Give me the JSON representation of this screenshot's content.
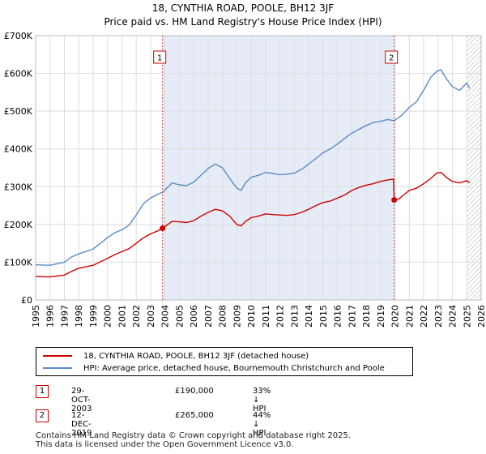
{
  "title_line1": "18, CYNTHIA ROAD, POOLE, BH12 3JF",
  "title_line2": "Price paid vs. HM Land Registry's House Price Index (HPI)",
  "colors": {
    "property": "#cc0000",
    "hpi": "#5b8bc5",
    "shade": "#e6ecf7",
    "grid": "#dddddd"
  },
  "chart_data": {
    "type": "line",
    "title": "18, CYNTHIA ROAD, POOLE, BH12 3JF — Price paid vs. HM Land Registry's House Price Index (HPI)",
    "xlabel": "",
    "ylabel": "",
    "xlim": [
      1995,
      2026
    ],
    "ylim": [
      0,
      700000
    ],
    "x_ticks": [
      1995,
      1996,
      1997,
      1998,
      1999,
      2000,
      2001,
      2002,
      2003,
      2004,
      2005,
      2006,
      2007,
      2008,
      2009,
      2010,
      2011,
      2012,
      2013,
      2014,
      2015,
      2016,
      2017,
      2018,
      2019,
      2020,
      2021,
      2022,
      2023,
      2024,
      2025,
      2026
    ],
    "y_ticks": [
      {
        "value": 0,
        "label": "£0"
      },
      {
        "value": 100000,
        "label": "£100K"
      },
      {
        "value": 200000,
        "label": "£200K"
      },
      {
        "value": 300000,
        "label": "£300K"
      },
      {
        "value": 400000,
        "label": "£400K"
      },
      {
        "value": 500000,
        "label": "£500K"
      },
      {
        "value": 600000,
        "label": "£600K"
      },
      {
        "value": 700000,
        "label": "£700K"
      }
    ],
    "shaded_regions": [
      {
        "from": 2003.83,
        "to": 2019.95,
        "style": "highlight"
      },
      {
        "from": 2025.0,
        "to": 2026.0,
        "style": "hatched"
      }
    ],
    "series": [
      {
        "name": "18, CYNTHIA ROAD, POOLE, BH12 3JF (detached house)",
        "color": "#cc0000",
        "x": [
          1995.0,
          1996.0,
          1997.0,
          1997.5,
          1998.0,
          1999.0,
          2000.0,
          2000.5,
          2001.0,
          2001.5,
          2002.0,
          2002.5,
          2003.0,
          2003.5,
          2003.83,
          2004.5,
          2005.0,
          2005.5,
          2006.0,
          2006.5,
          2007.0,
          2007.5,
          2008.0,
          2008.5,
          2009.0,
          2009.3,
          2009.6,
          2010.0,
          2010.5,
          2011.0,
          2011.5,
          2012.0,
          2012.5,
          2013.0,
          2013.5,
          2014.0,
          2014.5,
          2015.0,
          2015.5,
          2016.0,
          2016.5,
          2017.0,
          2017.5,
          2018.0,
          2018.5,
          2019.0,
          2019.5,
          2019.9,
          2019.95,
          2020.3,
          2020.6,
          2021.0,
          2021.5,
          2022.0,
          2022.5,
          2022.9,
          2023.2,
          2023.6,
          2024.0,
          2024.5,
          2025.0,
          2025.2
        ],
        "y": [
          62000,
          61000,
          66000,
          76000,
          84000,
          92000,
          110000,
          120000,
          128000,
          136000,
          150000,
          165000,
          175000,
          183000,
          190000,
          208000,
          207000,
          205000,
          210000,
          222000,
          232000,
          240000,
          236000,
          222000,
          200000,
          196000,
          208000,
          218000,
          222000,
          228000,
          226000,
          225000,
          224000,
          226000,
          232000,
          240000,
          250000,
          258000,
          262000,
          270000,
          278000,
          290000,
          298000,
          304000,
          308000,
          314000,
          318000,
          320000,
          265000,
          268000,
          278000,
          290000,
          296000,
          308000,
          322000,
          336000,
          338000,
          324000,
          314000,
          310000,
          316000,
          310000
        ]
      },
      {
        "name": "HPI: Average price, detached house, Bournemouth Christchurch and Poole",
        "color": "#5b8bc5",
        "x": [
          1995.0,
          1996.0,
          1997.0,
          1997.5,
          1998.0,
          1999.0,
          2000.0,
          2000.5,
          2001.0,
          2001.5,
          2002.0,
          2002.5,
          2003.0,
          2003.5,
          2003.83,
          2004.5,
          2005.0,
          2005.5,
          2006.0,
          2006.5,
          2007.0,
          2007.5,
          2008.0,
          2008.5,
          2009.0,
          2009.3,
          2009.6,
          2010.0,
          2010.5,
          2011.0,
          2011.5,
          2012.0,
          2012.5,
          2013.0,
          2013.5,
          2014.0,
          2014.5,
          2015.0,
          2015.5,
          2016.0,
          2016.5,
          2017.0,
          2017.5,
          2018.0,
          2018.5,
          2019.0,
          2019.5,
          2019.95,
          2020.5,
          2021.0,
          2021.5,
          2022.0,
          2022.5,
          2022.9,
          2023.2,
          2023.6,
          2024.0,
          2024.5,
          2025.0,
          2025.2
        ],
        "y": [
          93000,
          92000,
          100000,
          114000,
          122000,
          135000,
          165000,
          178000,
          186000,
          198000,
          225000,
          255000,
          270000,
          280000,
          285000,
          310000,
          305000,
          303000,
          312000,
          330000,
          348000,
          360000,
          350000,
          322000,
          296000,
          290000,
          310000,
          325000,
          330000,
          338000,
          335000,
          332000,
          333000,
          336000,
          346000,
          360000,
          375000,
          390000,
          400000,
          413000,
          428000,
          442000,
          452000,
          462000,
          470000,
          473000,
          478000,
          475000,
          490000,
          510000,
          525000,
          555000,
          590000,
          605000,
          610000,
          585000,
          565000,
          555000,
          575000,
          560000
        ]
      }
    ],
    "annotations": [
      {
        "label": "1",
        "x": 2003.83
      },
      {
        "label": "2",
        "x": 2019.95
      }
    ],
    "sale_points": [
      {
        "x": 2003.83,
        "y": 190000
      },
      {
        "x": 2019.95,
        "y": 265000
      }
    ],
    "legend_position": "below"
  },
  "legend": {
    "property": "18, CYNTHIA ROAD, POOLE, BH12 3JF (detached house)",
    "hpi": "HPI: Average price, detached house, Bournemouth Christchurch and Poole"
  },
  "transactions": [
    {
      "num": "1",
      "date": "29-OCT-2003",
      "price": "£190,000",
      "hpi": "33% ↓ HPI"
    },
    {
      "num": "2",
      "date": "12-DEC-2019",
      "price": "£265,000",
      "hpi": "44% ↓ HPI"
    }
  ],
  "footer_line1": "Contains HM Land Registry data © Crown copyright and database right 2025.",
  "footer_line2": "This data is licensed under the Open Government Licence v3.0."
}
